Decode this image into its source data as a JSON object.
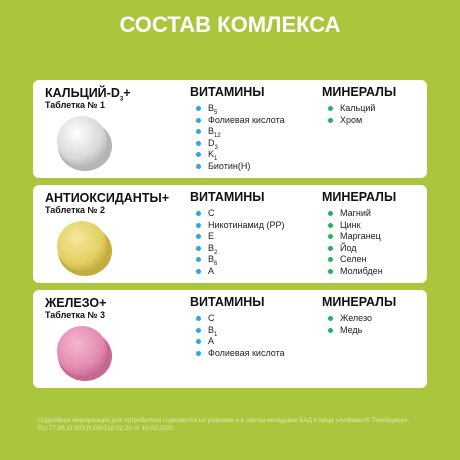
{
  "header": {
    "title": "СОСТАВ КОМЛЕКСА"
  },
  "cards": [
    {
      "name": {
        "text": "КАЛЬЦИЙ-D",
        "sub": "3",
        "after": "+"
      },
      "tablet": "Таблетка № 1",
      "color": "white",
      "vitamins": {
        "title": "ВИТАМИНЫ",
        "items": [
          {
            "text": "B",
            "sub": "5"
          },
          {
            "text": "Фолиевая кислота"
          },
          {
            "text": "B",
            "sub": "12"
          },
          {
            "text": "D",
            "sub": "3"
          },
          {
            "text": "K",
            "sub": "1"
          },
          {
            "text": "Биотин(Н)"
          }
        ]
      },
      "minerals": {
        "title": "МИНЕРАЛЫ",
        "items": [
          {
            "text": "Кальций"
          },
          {
            "text": "Хром"
          }
        ]
      }
    },
    {
      "name": {
        "text": "АНТИОКСИДАНТЫ+"
      },
      "tablet": "Таблетка № 2",
      "color": "yellow",
      "vitamins": {
        "title": "ВИТАМИНЫ",
        "items": [
          {
            "text": "С"
          },
          {
            "text": "Никотинамид (РР)"
          },
          {
            "text": "Е"
          },
          {
            "text": "B",
            "sub": "2"
          },
          {
            "text": "B",
            "sub": "6"
          },
          {
            "text": "А"
          }
        ]
      },
      "minerals": {
        "title": "МИНЕРАЛЫ",
        "items": [
          {
            "text": "Магний"
          },
          {
            "text": "Цинк"
          },
          {
            "text": "Марганец"
          },
          {
            "text": "Йод"
          },
          {
            "text": "Селен"
          },
          {
            "text": "Молибден"
          }
        ]
      }
    },
    {
      "name": {
        "text": "ЖЕЛЕЗО+"
      },
      "tablet": "Таблетка № 3",
      "color": "pink",
      "vitamins": {
        "title": "ВИТАМИНЫ",
        "items": [
          {
            "text": "С"
          },
          {
            "text": "B",
            "sub": "1"
          },
          {
            "text": "А"
          },
          {
            "text": "Фолиевая кислота"
          }
        ]
      },
      "minerals": {
        "title": "МИНЕРАЛЫ",
        "items": [
          {
            "text": "Железо"
          },
          {
            "text": "Медь"
          }
        ]
      }
    }
  ],
  "footer": "Подробная информация для потребителя содержится на упаковке и в листке-вкладыше БАД к пище «Алфавит® Тинейджер». RU.77.99.11.003.R.000318.02.20 от 10.02.2020"
}
